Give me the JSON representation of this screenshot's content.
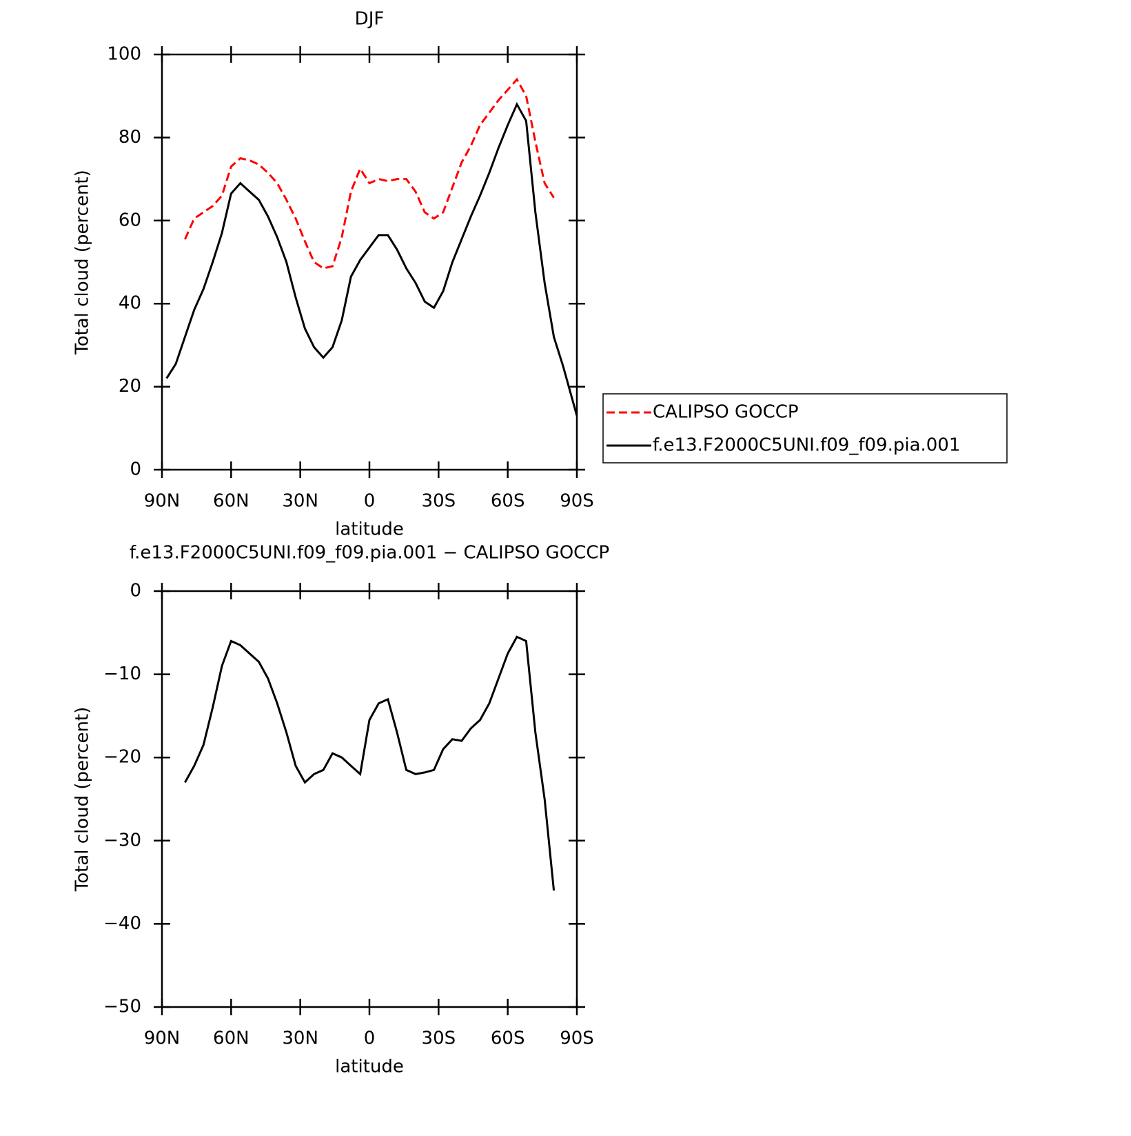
{
  "chart_data": [
    {
      "type": "line",
      "title": "DJF",
      "xlabel": "latitude",
      "ylabel": "Total cloud (percent)",
      "x": [
        88,
        84,
        80,
        76,
        72,
        68,
        64,
        60,
        56,
        52,
        48,
        44,
        40,
        36,
        32,
        28,
        24,
        20,
        16,
        12,
        8,
        4,
        0,
        -4,
        -8,
        -12,
        -16,
        -20,
        -24,
        -28,
        -32,
        -36,
        -40,
        -44,
        -48,
        -52,
        -56,
        -60,
        -64,
        -68,
        -72,
        -76,
        -80,
        -84,
        -88,
        -90
      ],
      "xlim": [
        90,
        -90
      ],
      "xticks": [
        {
          "value": 90,
          "label": "90N"
        },
        {
          "value": 60,
          "label": "60N"
        },
        {
          "value": 30,
          "label": "30N"
        },
        0,
        {
          "value": -30,
          "label": "30S"
        },
        {
          "value": -60,
          "label": "60S"
        },
        {
          "value": -90,
          "label": "90S"
        }
      ],
      "ylim": [
        0,
        100
      ],
      "yticks": [
        0,
        20,
        40,
        60,
        80,
        100
      ],
      "legend": "right",
      "series": [
        {
          "name": "CALIPSO GOCCP",
          "color": "#ff0000",
          "style": "dashed",
          "values": [
            null,
            null,
            55.5,
            60.5,
            62,
            63.5,
            66,
            73,
            75,
            74.5,
            73.5,
            71.5,
            69,
            65,
            60.5,
            55,
            50,
            48.5,
            49,
            56,
            67,
            72.5,
            69,
            70,
            69.5,
            70,
            70,
            67,
            62,
            60.5,
            62,
            68,
            74,
            78,
            83,
            86,
            89,
            91.5,
            94,
            90,
            79,
            69,
            65.5,
            null,
            null,
            null
          ]
        },
        {
          "name": "f.e13.F2000C5UNI.f09_f09.pia.001",
          "color": "#000000",
          "style": "solid",
          "values": [
            22,
            25.5,
            32,
            38.5,
            43.5,
            50,
            57,
            66.5,
            69,
            67,
            65,
            61,
            56,
            50,
            41.5,
            34,
            29.5,
            27,
            29.5,
            36,
            46.5,
            50.5,
            53.5,
            56.5,
            56.5,
            53,
            48.5,
            45,
            40.5,
            39,
            43,
            50,
            55.5,
            61,
            66,
            71.5,
            77.5,
            83,
            88,
            84,
            62,
            45,
            32,
            25,
            17,
            13
          ]
        }
      ]
    },
    {
      "type": "line",
      "title": "f.e13.F2000C5UNI.f09_f09.pia.001 − CALIPSO GOCCP",
      "xlabel": "latitude",
      "ylabel": "Total cloud (percent)",
      "x": [
        80,
        76,
        72,
        68,
        64,
        60,
        56,
        52,
        48,
        44,
        40,
        36,
        32,
        28,
        24,
        20,
        16,
        12,
        8,
        4,
        0,
        -4,
        -8,
        -12,
        -16,
        -20,
        -24,
        -28,
        -32,
        -36,
        -40,
        -44,
        -48,
        -52,
        -56,
        -60,
        -64,
        -68,
        -72,
        -76,
        -80
      ],
      "xlim": [
        90,
        -90
      ],
      "xticks": [
        {
          "value": 90,
          "label": "90N"
        },
        {
          "value": 60,
          "label": "60N"
        },
        {
          "value": 30,
          "label": "30N"
        },
        0,
        {
          "value": -30,
          "label": "30S"
        },
        {
          "value": -60,
          "label": "60S"
        },
        {
          "value": -90,
          "label": "90S"
        }
      ],
      "ylim": [
        -50,
        0
      ],
      "yticks": [
        {
          "value": -50,
          "label": "−50"
        },
        {
          "value": -40,
          "label": "−40"
        },
        {
          "value": -30,
          "label": "−30"
        },
        {
          "value": -20,
          "label": "−20"
        },
        {
          "value": -10,
          "label": "−10"
        },
        0
      ],
      "color": "#000000",
      "values": [
        -23,
        -21,
        -18.5,
        -14,
        -9,
        -6,
        -6.5,
        -7.5,
        -8.5,
        -10.5,
        -13.5,
        -17,
        -21,
        -23,
        -22,
        -21.5,
        -19.5,
        -20,
        -21,
        -22,
        -15.5,
        -13.5,
        -13,
        -17,
        -21.5,
        -22,
        -21.8,
        -21.5,
        -19,
        -17.8,
        -18,
        -16.5,
        -15.5,
        -13.5,
        -10.5,
        -7.5,
        -5.5,
        -6,
        -17,
        -25,
        -36
      ]
    }
  ]
}
